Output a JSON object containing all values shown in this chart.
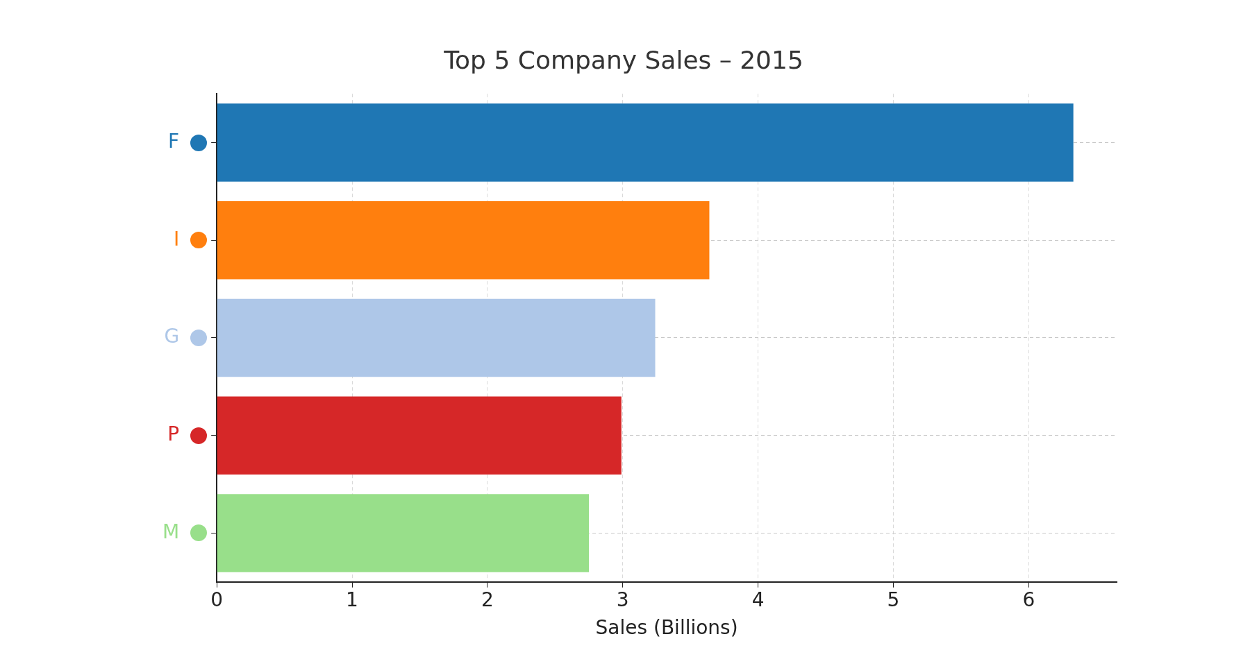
{
  "chart_data": {
    "type": "bar",
    "orientation": "horizontal",
    "title": "Top 5 Company Sales – 2015",
    "xlabel": "Sales (Billions)",
    "categories": [
      "F",
      "I",
      "G",
      "P",
      "M"
    ],
    "values": [
      6.33,
      3.64,
      3.24,
      2.99,
      2.75
    ],
    "colors": [
      "#1f77b4",
      "#ff7f0e",
      "#aec7e8",
      "#d62728",
      "#98df8a"
    ],
    "xlim": [
      0,
      6.65
    ],
    "xticks": [
      0,
      1,
      2,
      3,
      4,
      5,
      6
    ],
    "grid": true,
    "legend": false
  }
}
